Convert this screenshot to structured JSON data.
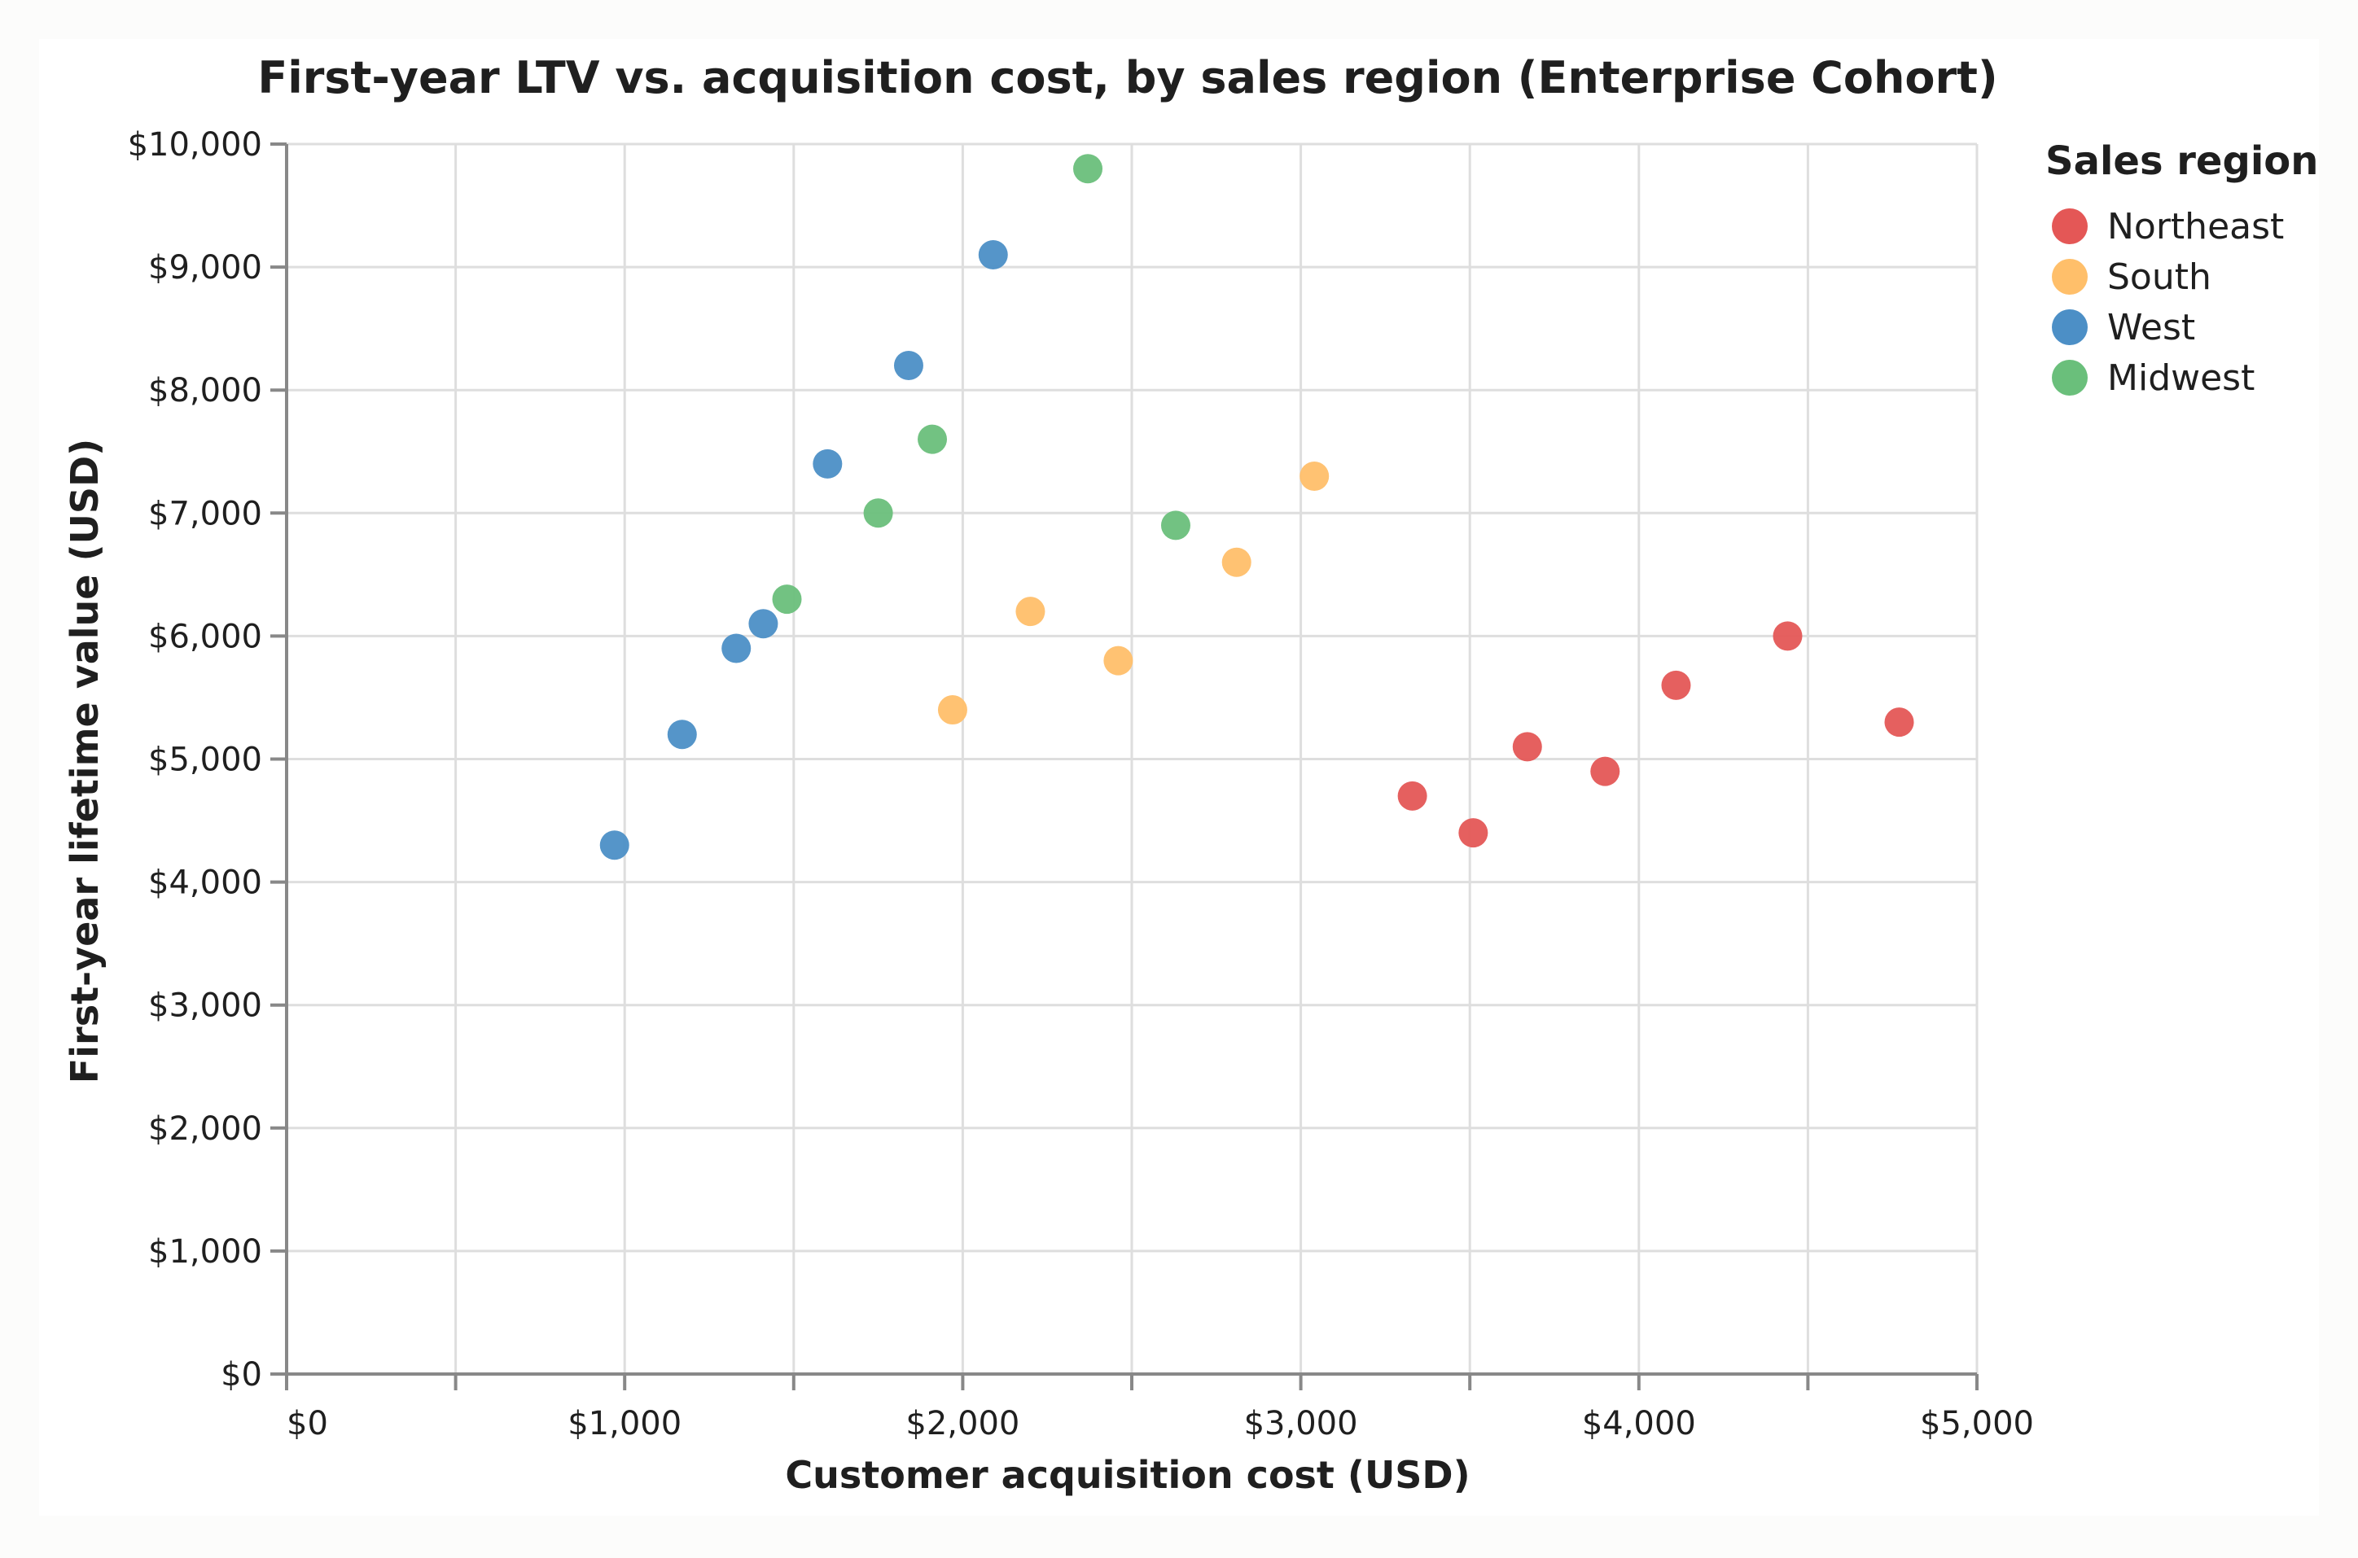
{
  "chart_data": {
    "type": "scatter",
    "title": "First-year LTV vs. acquisition cost, by sales region (Enterprise Cohort)",
    "xlabel": "Customer acquisition cost (USD)",
    "ylabel": "First-year lifetime value (USD)",
    "xlim": [
      0,
      5000
    ],
    "ylim": [
      0,
      10000
    ],
    "x_ticks": [
      0,
      500,
      1000,
      1500,
      2000,
      2500,
      3000,
      3500,
      4000,
      4500,
      5000
    ],
    "x_tick_labels": [
      "$0",
      "",
      "$1,000",
      "",
      "$2,000",
      "",
      "$3,000",
      "",
      "$4,000",
      "",
      "$5,000"
    ],
    "y_ticks": [
      0,
      1000,
      2000,
      3000,
      4000,
      5000,
      6000,
      7000,
      8000,
      9000,
      10000
    ],
    "y_tick_labels": [
      "$0",
      "$1,000",
      "$2,000",
      "$3,000",
      "$4,000",
      "$5,000",
      "$6,000",
      "$7,000",
      "$8,000",
      "$9,000",
      "$10,000"
    ],
    "grid": true,
    "legend": {
      "title": "Sales region",
      "placement": "right"
    },
    "series": [
      {
        "name": "Northeast",
        "color": "#e45756",
        "points": [
          {
            "x": 3330,
            "y": 4700
          },
          {
            "x": 3510,
            "y": 4400
          },
          {
            "x": 3670,
            "y": 5100
          },
          {
            "x": 3900,
            "y": 4900
          },
          {
            "x": 4110,
            "y": 5600
          },
          {
            "x": 4440,
            "y": 6000
          },
          {
            "x": 4770,
            "y": 5300
          }
        ]
      },
      {
        "name": "South",
        "color": "#ffbf6a",
        "points": [
          {
            "x": 1970,
            "y": 5400
          },
          {
            "x": 2200,
            "y": 6200
          },
          {
            "x": 2460,
            "y": 5800
          },
          {
            "x": 2810,
            "y": 6600
          },
          {
            "x": 3040,
            "y": 7300
          }
        ]
      },
      {
        "name": "West",
        "color": "#4c8fc6",
        "points": [
          {
            "x": 970,
            "y": 4300
          },
          {
            "x": 1170,
            "y": 5200
          },
          {
            "x": 1330,
            "y": 5900
          },
          {
            "x": 1410,
            "y": 6100
          },
          {
            "x": 1600,
            "y": 7400
          },
          {
            "x": 1840,
            "y": 8200
          },
          {
            "x": 2090,
            "y": 9100
          }
        ]
      },
      {
        "name": "Midwest",
        "color": "#6abf7b",
        "points": [
          {
            "x": 1480,
            "y": 6300
          },
          {
            "x": 1750,
            "y": 7000
          },
          {
            "x": 1910,
            "y": 7600
          },
          {
            "x": 2370,
            "y": 9800
          },
          {
            "x": 2630,
            "y": 6900
          }
        ]
      }
    ]
  }
}
